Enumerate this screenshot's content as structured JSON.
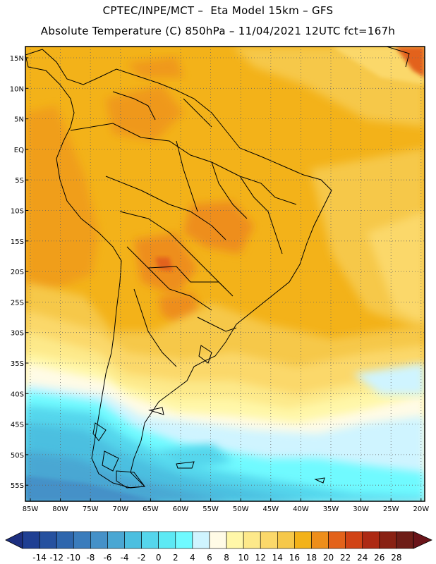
{
  "header": {
    "line1": "CPTEC/INPE/MCT –  Eta Model 15km – GFS",
    "line2": "Absolute Temperature (C) 850hPa – 11/04/2021 12UTC fct=167h"
  },
  "axes": {
    "lat_labels": [
      "15N",
      "10N",
      "5N",
      "EQ",
      "5S",
      "10S",
      "15S",
      "20S",
      "25S",
      "30S",
      "35S",
      "40S",
      "45S",
      "50S",
      "55S"
    ],
    "lon_labels": [
      "85W",
      "80W",
      "75W",
      "70W",
      "65W",
      "60W",
      "55W",
      "50W",
      "45W",
      "40W",
      "35W",
      "30W",
      "25W",
      "20W"
    ]
  },
  "colorbar": {
    "labels": [
      "-14",
      "-12",
      "-10",
      "-8",
      "-6",
      "-4",
      "-2",
      "0",
      "2",
      "4",
      "6",
      "8",
      "10",
      "12",
      "14",
      "16",
      "18",
      "20",
      "22",
      "24",
      "26",
      "28"
    ],
    "colors": [
      "#1f3f93",
      "#26519f",
      "#2e66ad",
      "#3a7cbc",
      "#4591c8",
      "#4aa7d3",
      "#4bbfe0",
      "#55d6ec",
      "#5ce9f4",
      "#6ffaff",
      "#cff4ff",
      "#fffbe6",
      "#fff7a8",
      "#fde98a",
      "#fbd86a",
      "#f6c84a",
      "#f3b219",
      "#ee8e1a",
      "#e3621a",
      "#d14315",
      "#ad2a14",
      "#892113",
      "#6e1d17"
    ],
    "under_color": "#1d2f80",
    "over_color": "#6a1419"
  }
}
